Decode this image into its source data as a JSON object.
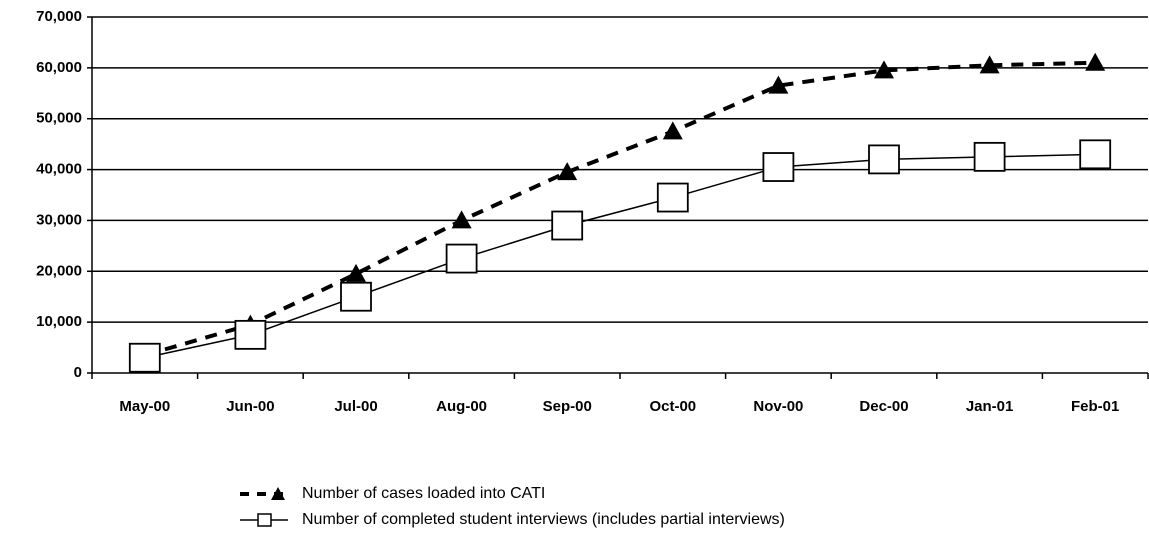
{
  "chart_data": {
    "type": "line",
    "categories": [
      "May-00",
      "Jun-00",
      "Jul-00",
      "Aug-00",
      "Sep-00",
      "Oct-00",
      "Nov-00",
      "Dec-00",
      "Jan-01",
      "Feb-01"
    ],
    "series": [
      {
        "name": "Number of cases loaded into CATI",
        "color": "#000000",
        "values": [
          3500,
          9500,
          19500,
          30000,
          39500,
          47500,
          56500,
          59500,
          60500,
          61000
        ]
      },
      {
        "name": "Number of completed student interviews (includes partial interviews)",
        "color": "#000000",
        "values": [
          3000,
          7500,
          15000,
          22500,
          29000,
          34500,
          40500,
          42000,
          42500,
          43000
        ]
      }
    ],
    "ylim": [
      0,
      70000
    ],
    "yticks": [
      0,
      {
        "value": 10000,
        "label": "10,000"
      },
      {
        "value": 20000,
        "label": "20,000"
      },
      {
        "value": 30000,
        "label": "30,000"
      },
      {
        "value": 40000,
        "label": "40,000"
      },
      {
        "value": 50000,
        "label": "50,000"
      },
      {
        "value": 60000,
        "label": "60,000"
      },
      {
        "value": 70000,
        "label": "70,000"
      }
    ],
    "grid": true
  }
}
